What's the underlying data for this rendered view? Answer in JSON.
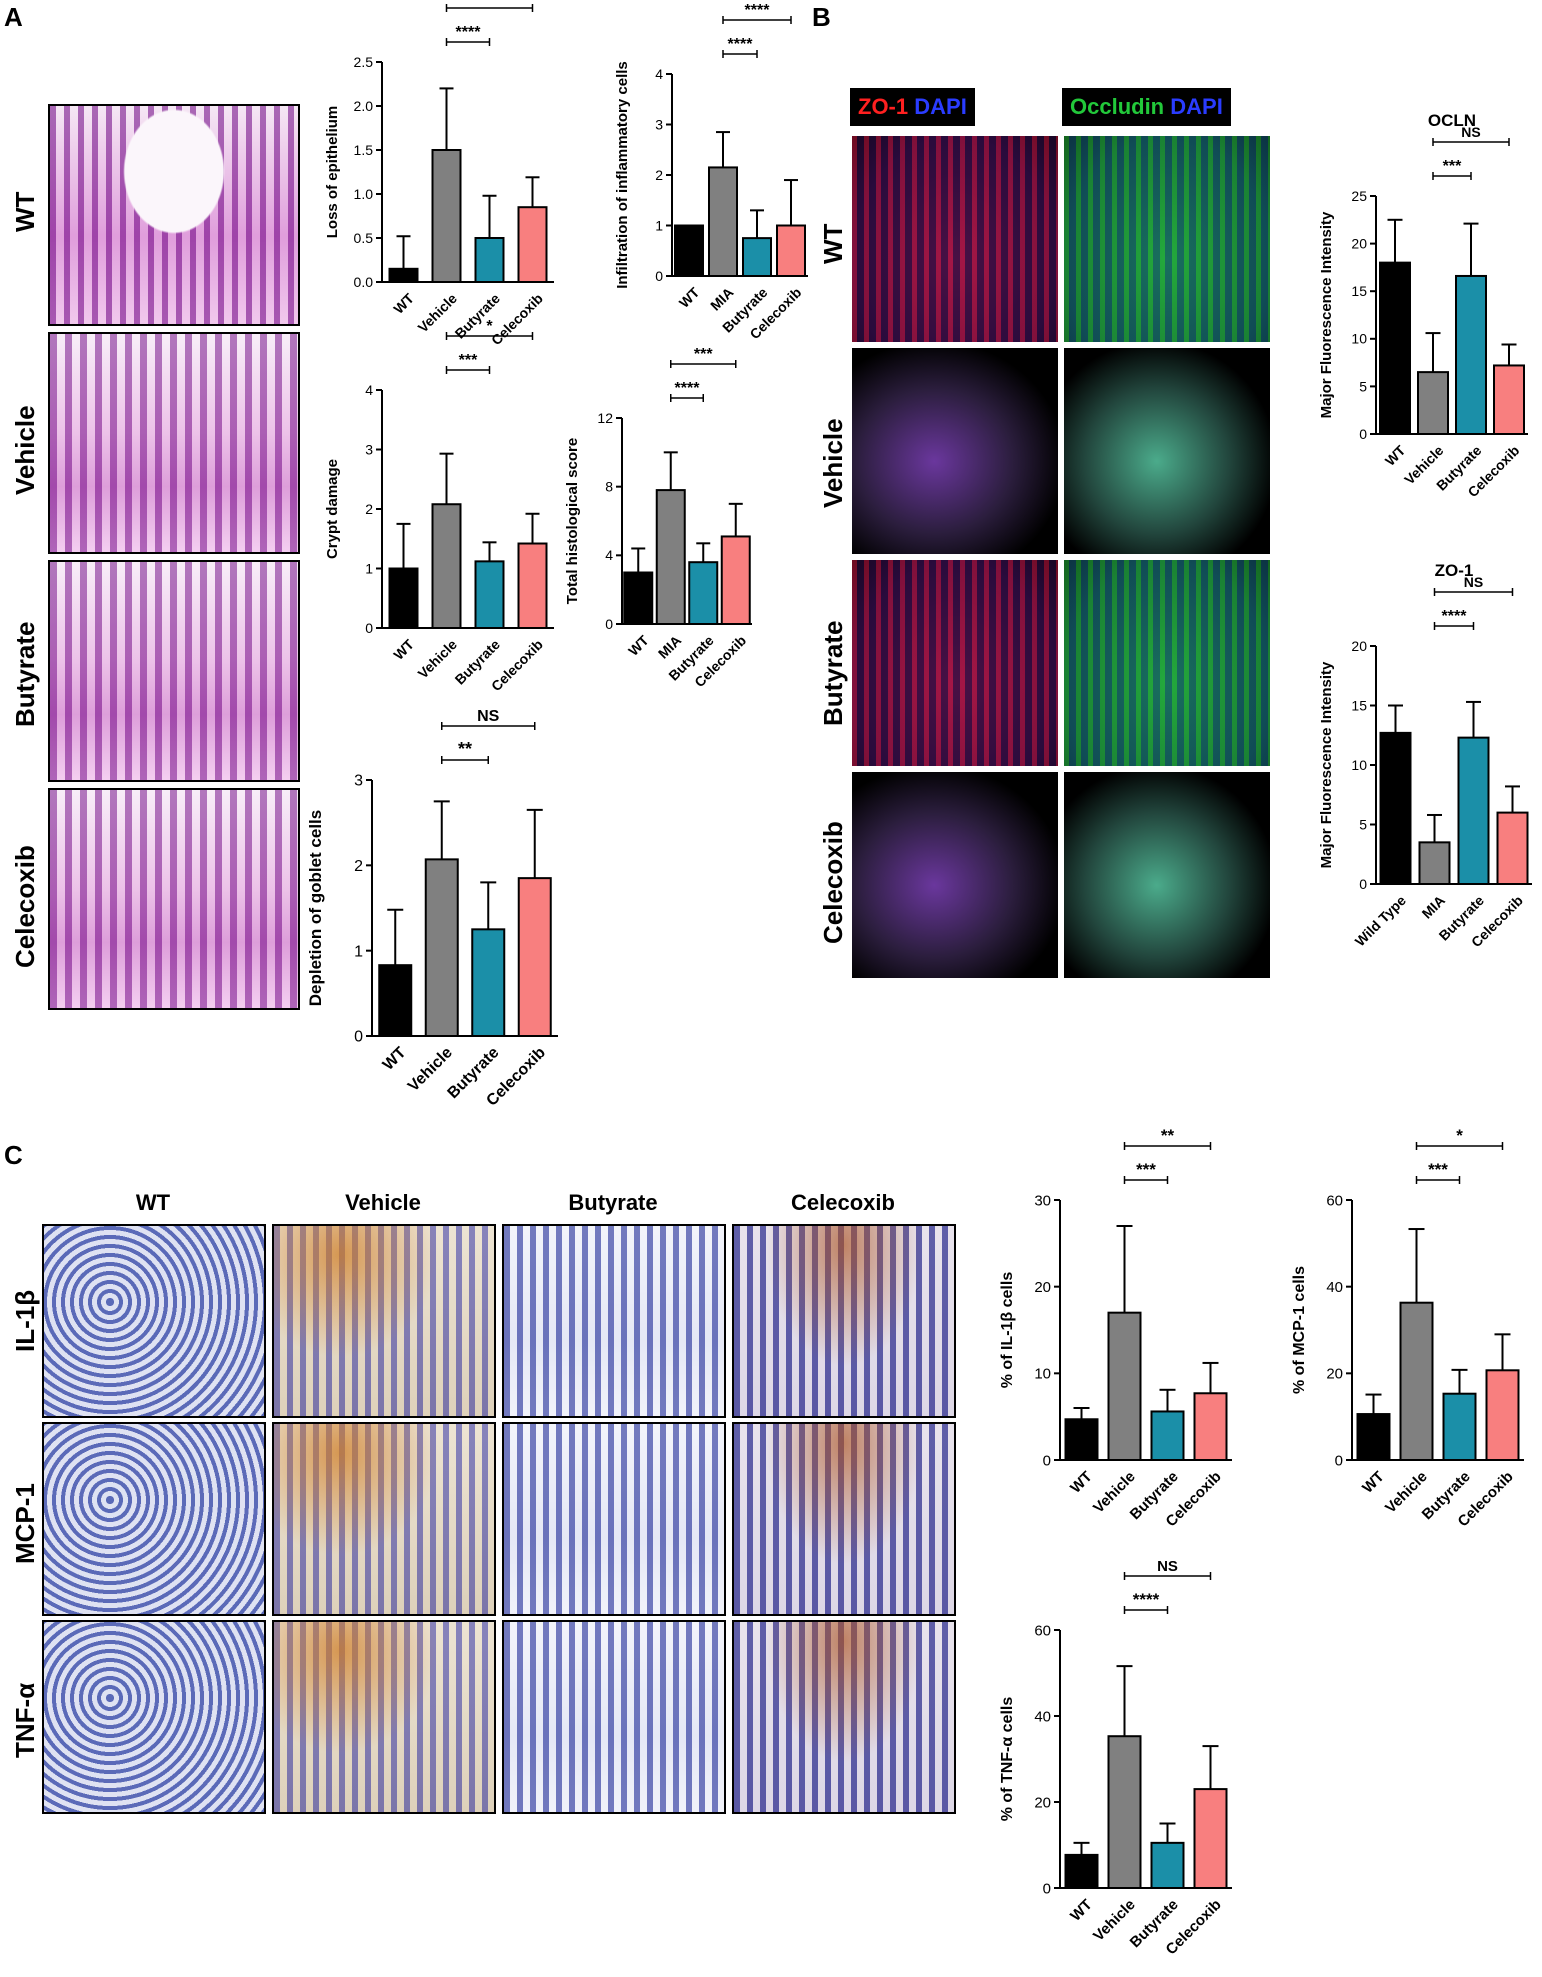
{
  "panels": {
    "a": "A",
    "b": "B",
    "c": "C"
  },
  "panel_a": {
    "row_labels": [
      "WT",
      "Vehicle",
      "Butyrate",
      "Celecoxib"
    ]
  },
  "panel_b": {
    "header_zo1": "ZO-1",
    "header_occludin": "Occludin",
    "header_dapi": "DAPI",
    "row_labels": [
      "WT",
      "Vehicle",
      "Butyrate",
      "Celecoxib"
    ]
  },
  "panel_c": {
    "col_labels": [
      "WT",
      "Vehicle",
      "Butyrate",
      "Celecoxib"
    ],
    "row_labels": [
      "IL-1β",
      "MCP-1",
      "TNF-α"
    ]
  },
  "colors": {
    "wt": "#000000",
    "vehicle": "#808080",
    "butyrate": "#1b8fa8",
    "celecoxib": "#f87f7f"
  },
  "chart_data": [
    {
      "id": "loss",
      "type": "bar",
      "title": "",
      "ylabel": "Loss of epithelium",
      "categories": [
        "WT",
        "Vehicle",
        "Butyrate",
        "Celecoxib"
      ],
      "values": [
        0.15,
        1.5,
        0.5,
        0.85
      ],
      "errors": [
        0.37,
        0.7,
        0.48,
        0.34
      ],
      "ylim": [
        0,
        2.5
      ],
      "yticks": [
        0,
        0.5,
        1.0,
        1.5,
        2.0,
        2.5
      ],
      "ytick_labels": [
        "0.0",
        "0.5",
        "1.0",
        "1.5",
        "2.0",
        "2.5"
      ],
      "sig": [
        {
          "from": 1,
          "to": 2,
          "label": "****"
        },
        {
          "from": 1,
          "to": 3,
          "label": "**"
        }
      ]
    },
    {
      "id": "infil",
      "type": "bar",
      "title": "",
      "ylabel": "Infiltration of inflammatory cells",
      "categories": [
        "WT",
        "MIA",
        "Butyrate",
        "Celecoxib"
      ],
      "values": [
        1.0,
        2.15,
        0.75,
        1.0
      ],
      "errors": [
        0,
        0.7,
        0.55,
        0.9
      ],
      "ylim": [
        0,
        4
      ],
      "yticks": [
        0,
        1,
        2,
        3,
        4
      ],
      "ytick_labels": [
        "0",
        "1",
        "2",
        "3",
        "4"
      ],
      "sig": [
        {
          "from": 1,
          "to": 2,
          "label": "****"
        },
        {
          "from": 1,
          "to": 3,
          "label": "****"
        }
      ]
    },
    {
      "id": "crypt",
      "type": "bar",
      "title": "",
      "ylabel": "Crypt damage",
      "categories": [
        "WT",
        "Vehicle",
        "Butyrate",
        "Celecoxib"
      ],
      "values": [
        1.0,
        2.08,
        1.12,
        1.42
      ],
      "errors": [
        0.75,
        0.85,
        0.32,
        0.5
      ],
      "ylim": [
        0,
        4
      ],
      "yticks": [
        0,
        1,
        2,
        3,
        4
      ],
      "ytick_labels": [
        "0",
        "1",
        "2",
        "3",
        "4"
      ],
      "sig": [
        {
          "from": 1,
          "to": 2,
          "label": "***"
        },
        {
          "from": 1,
          "to": 3,
          "label": "*"
        }
      ]
    },
    {
      "id": "total",
      "type": "bar",
      "title": "",
      "ylabel": "Total histological score",
      "categories": [
        "WT",
        "MIA",
        "Butyrate",
        "Celecoxib"
      ],
      "values": [
        3.0,
        7.8,
        3.6,
        5.1
      ],
      "errors": [
        1.4,
        2.2,
        1.1,
        1.9
      ],
      "ylim": [
        0,
        12
      ],
      "yticks": [
        0,
        4,
        8,
        12
      ],
      "ytick_labels": [
        "0",
        "4",
        "8",
        "12"
      ],
      "sig": [
        {
          "from": 1,
          "to": 2,
          "label": "****"
        },
        {
          "from": 1,
          "to": 3,
          "label": "***"
        }
      ]
    },
    {
      "id": "goblet",
      "type": "bar",
      "title": "",
      "ylabel": "Depletion of goblet cells",
      "categories": [
        "WT",
        "Vehicle",
        "Butyrate",
        "Celecoxib"
      ],
      "values": [
        0.83,
        2.07,
        1.25,
        1.85
      ],
      "errors": [
        0.65,
        0.68,
        0.55,
        0.8
      ],
      "ylim": [
        0,
        3
      ],
      "yticks": [
        0,
        1,
        2,
        3
      ],
      "ytick_labels": [
        "0",
        "1",
        "2",
        "3"
      ],
      "sig": [
        {
          "from": 1,
          "to": 2,
          "label": "**"
        },
        {
          "from": 1,
          "to": 3,
          "label": "NS"
        }
      ]
    },
    {
      "id": "ocln",
      "type": "bar",
      "title": "OCLN",
      "ylabel": "Major Fluorescence Intensity",
      "categories": [
        "WT",
        "Vehicle",
        "Butyrate",
        "Celecoxib"
      ],
      "values": [
        18.0,
        6.5,
        16.6,
        7.2
      ],
      "errors": [
        4.5,
        4.1,
        5.5,
        2.2
      ],
      "ylim": [
        0,
        25
      ],
      "yticks": [
        0,
        5,
        10,
        15,
        20,
        25
      ],
      "ytick_labels": [
        "0",
        "5",
        "10",
        "15",
        "20",
        "25"
      ],
      "sig": [
        {
          "from": 1,
          "to": 2,
          "label": "***"
        },
        {
          "from": 1,
          "to": 3,
          "label": "NS"
        }
      ]
    },
    {
      "id": "zo1",
      "type": "bar",
      "title": "ZO-1",
      "ylabel": "Major Fluorescence Intensity",
      "categories": [
        "Wild Type",
        "MIA",
        "Butyrate",
        "Celecoxib"
      ],
      "values": [
        12.7,
        3.5,
        12.3,
        6.0
      ],
      "errors": [
        2.3,
        2.3,
        3.0,
        2.2
      ],
      "ylim": [
        0,
        20
      ],
      "yticks": [
        0,
        5,
        10,
        15,
        20
      ],
      "ytick_labels": [
        "0",
        "5",
        "10",
        "15",
        "20"
      ],
      "sig": [
        {
          "from": 1,
          "to": 2,
          "label": "****"
        },
        {
          "from": 1,
          "to": 3,
          "label": "NS"
        }
      ]
    },
    {
      "id": "il1b",
      "type": "bar",
      "title": "",
      "ylabel": "% of IL-1β cells",
      "categories": [
        "WT",
        "Vehicle",
        "Butyrate",
        "Celecoxib"
      ],
      "values": [
        4.7,
        17.0,
        5.6,
        7.7
      ],
      "errors": [
        1.3,
        10.0,
        2.5,
        3.5
      ],
      "ylim": [
        0,
        30
      ],
      "yticks": [
        0,
        10,
        20,
        30
      ],
      "ytick_labels": [
        "0",
        "10",
        "20",
        "30"
      ],
      "sig": [
        {
          "from": 1,
          "to": 2,
          "label": "***"
        },
        {
          "from": 1,
          "to": 3,
          "label": "**"
        }
      ]
    },
    {
      "id": "mcp1",
      "type": "bar",
      "title": "",
      "ylabel": "% of MCP-1 cells",
      "categories": [
        "WT",
        "Vehicle",
        "Butyrate",
        "Celecoxib"
      ],
      "values": [
        10.6,
        36.3,
        15.3,
        20.7
      ],
      "errors": [
        4.5,
        17.0,
        5.5,
        8.3
      ],
      "ylim": [
        0,
        60
      ],
      "yticks": [
        0,
        20,
        40,
        60
      ],
      "ytick_labels": [
        "0",
        "20",
        "40",
        "60"
      ],
      "sig": [
        {
          "from": 1,
          "to": 2,
          "label": "***"
        },
        {
          "from": 1,
          "to": 3,
          "label": "*"
        }
      ]
    },
    {
      "id": "tnfa",
      "type": "bar",
      "title": "",
      "ylabel": "% of TNF-α cells",
      "categories": [
        "WT",
        "Vehicle",
        "Butyrate",
        "Celecoxib"
      ],
      "values": [
        7.7,
        35.3,
        10.5,
        23.0
      ],
      "errors": [
        2.8,
        16.3,
        4.5,
        10.0
      ],
      "ylim": [
        0,
        60
      ],
      "yticks": [
        0,
        20,
        40,
        60
      ],
      "ytick_labels": [
        "0",
        "20",
        "40",
        "60"
      ],
      "sig": [
        {
          "from": 1,
          "to": 2,
          "label": "****"
        },
        {
          "from": 1,
          "to": 3,
          "label": "NS"
        }
      ]
    }
  ]
}
